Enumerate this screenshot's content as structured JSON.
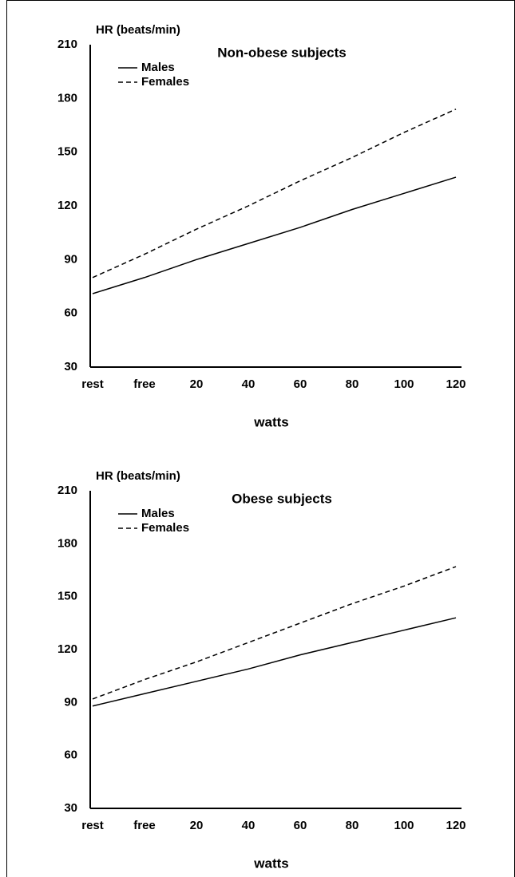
{
  "chart_data": [
    {
      "type": "line",
      "title": "Non-obese subjects",
      "y_label": "HR (beats/min)",
      "x_label": "watts",
      "categories": [
        "rest",
        "free",
        "20",
        "40",
        "60",
        "80",
        "100",
        "120"
      ],
      "ylim": [
        30,
        210
      ],
      "yticks": [
        30,
        60,
        90,
        120,
        150,
        180,
        210
      ],
      "grid": false,
      "series": [
        {
          "name": "Males",
          "color": "#000000",
          "line_style": "solid",
          "values": [
            71,
            80,
            90,
            99,
            108,
            118,
            127,
            136
          ]
        },
        {
          "name": "Females",
          "color": "#000000",
          "line_style": "dashed",
          "values": [
            80,
            93,
            107,
            120,
            134,
            147,
            161,
            174
          ]
        }
      ]
    },
    {
      "type": "line",
      "title": "Obese subjects",
      "y_label": "HR (beats/min)",
      "x_label": "watts",
      "categories": [
        "rest",
        "free",
        "20",
        "40",
        "60",
        "80",
        "100",
        "120"
      ],
      "ylim": [
        30,
        210
      ],
      "yticks": [
        30,
        60,
        90,
        120,
        150,
        180,
        210
      ],
      "grid": false,
      "series": [
        {
          "name": "Males",
          "color": "#000000",
          "line_style": "solid",
          "values": [
            88,
            95,
            102,
            109,
            117,
            124,
            131,
            138
          ]
        },
        {
          "name": "Females",
          "color": "#000000",
          "line_style": "dashed",
          "values": [
            92,
            103,
            113,
            124,
            135,
            146,
            156,
            167
          ]
        }
      ]
    }
  ]
}
